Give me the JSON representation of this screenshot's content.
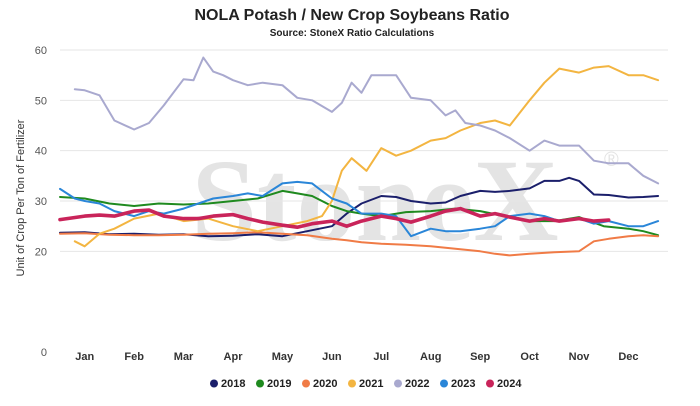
{
  "chart_data": {
    "type": "line",
    "title": "NOLA Potash / New Crop Soybeans Ratio",
    "subtitle": "Source: StoneX Ratio Calculations",
    "ylabel": "Unit of Crop Per Ton of Fertilizer",
    "xlabel": "",
    "watermark": "StoneX",
    "watermark_mark": "®",
    "ylim": [
      0,
      60
    ],
    "yticks": [
      0,
      20,
      30,
      40,
      50,
      60
    ],
    "xlim": [
      0.5,
      12.8
    ],
    "xticks": [
      {
        "label": "Jan",
        "value": 1
      },
      {
        "label": "Feb",
        "value": 2
      },
      {
        "label": "Mar",
        "value": 3
      },
      {
        "label": "Apr",
        "value": 4
      },
      {
        "label": "May",
        "value": 5
      },
      {
        "label": "Jun",
        "value": 6
      },
      {
        "label": "Jul",
        "value": 7
      },
      {
        "label": "Aug",
        "value": 8
      },
      {
        "label": "Sep",
        "value": 9
      },
      {
        "label": "Oct",
        "value": 10
      },
      {
        "label": "Nov",
        "value": 11
      },
      {
        "label": "Dec",
        "value": 12
      }
    ],
    "grid": "horizontal",
    "legend_position": "bottom",
    "series": [
      {
        "name": "2018",
        "color": "#1b1f6b",
        "x": [
          0.5,
          1.0,
          1.5,
          2.0,
          2.5,
          3.0,
          3.5,
          4.0,
          4.5,
          5.0,
          5.5,
          6.0,
          6.3,
          6.6,
          7.0,
          7.3,
          7.6,
          8.0,
          8.3,
          8.6,
          9.0,
          9.3,
          9.6,
          10.0,
          10.3,
          10.6,
          10.8,
          11.0,
          11.3,
          11.6,
          12.0,
          12.3,
          12.6
        ],
        "y": [
          23.7,
          23.8,
          23.4,
          23.5,
          23.3,
          23.4,
          23.0,
          23.1,
          23.4,
          23.0,
          24.0,
          25.0,
          27.5,
          29.5,
          31.0,
          30.8,
          30.0,
          29.5,
          29.7,
          31.0,
          32.0,
          31.8,
          32.0,
          32.5,
          34.0,
          34.0,
          34.6,
          34.0,
          31.3,
          31.2,
          30.7,
          30.8,
          31.0
        ]
      },
      {
        "name": "2019",
        "color": "#1f8a1f",
        "x": [
          0.5,
          1.0,
          1.5,
          2.0,
          2.5,
          3.0,
          3.5,
          4.0,
          4.5,
          5.0,
          5.3,
          5.6,
          6.0,
          6.3,
          6.6,
          7.0,
          7.5,
          8.0,
          8.5,
          9.0,
          9.5,
          10.0,
          10.5,
          11.0,
          11.5,
          12.0,
          12.3,
          12.6
        ],
        "y": [
          30.8,
          30.5,
          29.5,
          29.0,
          29.5,
          29.3,
          29.5,
          30.0,
          30.5,
          32.0,
          31.5,
          31.0,
          29.0,
          28.0,
          27.5,
          27.0,
          27.8,
          28.0,
          28.5,
          28.0,
          27.0,
          26.0,
          26.0,
          26.8,
          25.0,
          24.5,
          24.0,
          23.2
        ]
      },
      {
        "name": "2020",
        "color": "#f07b46",
        "x": [
          0.5,
          1.0,
          1.5,
          2.0,
          2.5,
          3.0,
          3.5,
          4.0,
          4.5,
          5.0,
          5.5,
          6.0,
          6.3,
          6.6,
          7.0,
          7.5,
          8.0,
          8.5,
          9.0,
          9.3,
          9.6,
          10.0,
          10.5,
          11.0,
          11.3,
          11.6,
          12.0,
          12.3,
          12.6
        ],
        "y": [
          23.5,
          23.6,
          23.3,
          23.2,
          23.2,
          23.3,
          23.5,
          23.6,
          23.8,
          23.5,
          23.2,
          22.5,
          22.2,
          21.8,
          21.5,
          21.3,
          21.0,
          20.5,
          20.0,
          19.5,
          19.2,
          19.5,
          19.8,
          20.0,
          22.0,
          22.5,
          23.0,
          23.2,
          23.0
        ]
      },
      {
        "name": "2021",
        "color": "#f3b541",
        "x": [
          0.8,
          1.0,
          1.3,
          1.6,
          2.0,
          2.5,
          3.0,
          3.5,
          4.0,
          4.5,
          5.0,
          5.5,
          5.8,
          6.0,
          6.2,
          6.4,
          6.7,
          7.0,
          7.3,
          7.6,
          8.0,
          8.3,
          8.6,
          9.0,
          9.3,
          9.6,
          10.0,
          10.3,
          10.6,
          11.0,
          11.3,
          11.6,
          12.0,
          12.3,
          12.6
        ],
        "y": [
          22.0,
          21.0,
          23.5,
          24.5,
          26.5,
          27.5,
          26.0,
          26.5,
          25.0,
          24.0,
          25.0,
          26.0,
          27.0,
          30.0,
          36.0,
          38.5,
          36.0,
          40.5,
          39.0,
          40.0,
          42.0,
          42.5,
          44.0,
          45.5,
          46.0,
          45.0,
          50.0,
          53.5,
          56.3,
          55.5,
          56.5,
          56.8,
          55.0,
          55.0,
          54.0
        ]
      },
      {
        "name": "2022",
        "color": "#a9a9cf",
        "x": [
          0.8,
          1.0,
          1.3,
          1.6,
          2.0,
          2.3,
          2.6,
          3.0,
          3.2,
          3.4,
          3.6,
          3.8,
          4.0,
          4.3,
          4.6,
          5.0,
          5.3,
          5.6,
          6.0,
          6.2,
          6.4,
          6.6,
          6.8,
          7.0,
          7.3,
          7.6,
          8.0,
          8.3,
          8.5,
          8.7,
          9.0,
          9.3,
          9.6,
          10.0,
          10.3,
          10.6,
          11.0,
          11.3,
          11.6,
          12.0,
          12.3,
          12.6
        ],
        "y": [
          52.2,
          52.0,
          51.0,
          46.0,
          44.2,
          45.5,
          49.0,
          54.2,
          54.0,
          58.5,
          55.7,
          55.0,
          54.0,
          53.0,
          53.5,
          53.0,
          50.5,
          50.0,
          47.7,
          49.5,
          53.5,
          51.5,
          55.0,
          55.0,
          55.0,
          50.5,
          50.0,
          47.0,
          48.0,
          45.5,
          45.0,
          44.0,
          42.5,
          40.0,
          42.0,
          41.0,
          41.0,
          38.0,
          37.5,
          37.5,
          35.0,
          33.5
        ]
      },
      {
        "name": "2023",
        "color": "#2a86d8",
        "x": [
          0.5,
          0.8,
          1.0,
          1.3,
          1.6,
          2.0,
          2.3,
          2.6,
          3.0,
          3.3,
          3.6,
          4.0,
          4.3,
          4.6,
          5.0,
          5.3,
          5.6,
          6.0,
          6.3,
          6.6,
          7.0,
          7.3,
          7.6,
          8.0,
          8.3,
          8.6,
          9.0,
          9.3,
          9.6,
          10.0,
          10.3,
          10.6,
          11.0,
          11.3,
          11.6,
          12.0,
          12.3,
          12.6
        ],
        "y": [
          32.4,
          30.5,
          30.0,
          29.5,
          28.0,
          27.0,
          28.0,
          27.5,
          28.5,
          29.5,
          30.5,
          31.0,
          31.5,
          31.0,
          33.5,
          33.8,
          33.5,
          30.5,
          29.5,
          27.5,
          27.5,
          27.0,
          23.0,
          24.5,
          24.0,
          24.0,
          24.5,
          25.0,
          27.0,
          27.5,
          27.0,
          26.0,
          26.5,
          25.5,
          26.0,
          25.0,
          25.0,
          26.0
        ]
      },
      {
        "name": "2024",
        "color": "#c9245a",
        "x": [
          0.5,
          1.0,
          1.3,
          1.6,
          2.0,
          2.3,
          2.6,
          3.0,
          3.3,
          3.6,
          4.0,
          4.3,
          4.6,
          5.0,
          5.3,
          5.6,
          6.0,
          6.3,
          6.6,
          7.0,
          7.3,
          7.6,
          8.0,
          8.3,
          8.6,
          9.0,
          9.3,
          9.6,
          10.0,
          10.3,
          10.6,
          11.0,
          11.3,
          11.6
        ],
        "y": [
          26.3,
          27.0,
          27.2,
          27.0,
          28.0,
          28.2,
          27.0,
          26.5,
          26.5,
          27.0,
          27.3,
          26.5,
          25.8,
          25.2,
          24.8,
          25.5,
          26.0,
          25.0,
          26.0,
          27.0,
          26.5,
          25.8,
          27.0,
          28.0,
          28.5,
          27.0,
          27.5,
          26.8,
          26.0,
          26.5,
          26.0,
          26.5,
          26.0,
          26.2
        ]
      }
    ]
  }
}
